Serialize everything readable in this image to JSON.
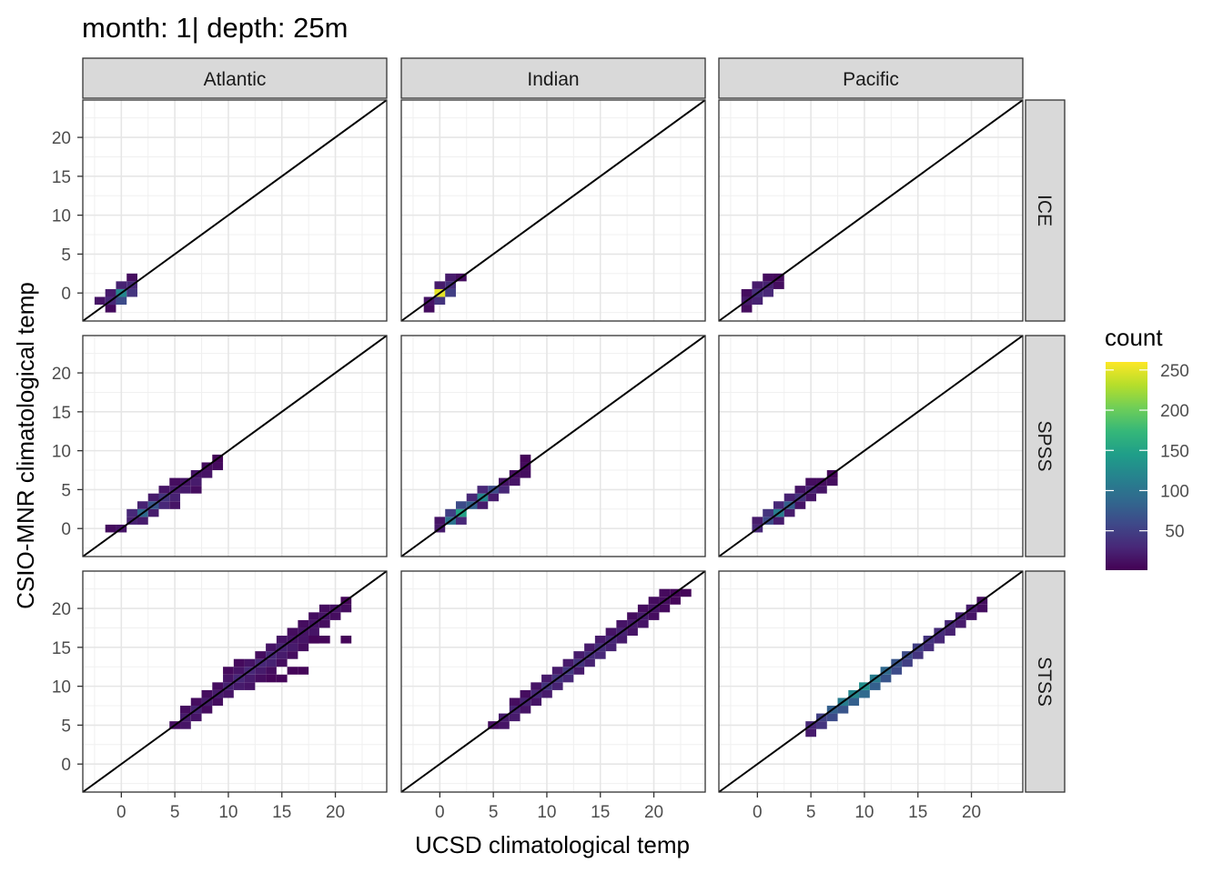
{
  "chart_data": {
    "type": "heatmap",
    "title": "month: 1| depth: 25m",
    "xlabel": "UCSD climatological temp",
    "ylabel": "CSIO-MNR climatological temp",
    "xlim": [
      -3.6,
      24.8
    ],
    "ylim": [
      -3.6,
      24.8
    ],
    "xticks": [
      0,
      5,
      10,
      15,
      20
    ],
    "yticks": [
      0,
      5,
      10,
      15,
      20
    ],
    "grid": true,
    "reference_line": "y = x",
    "bin_width": 1,
    "col_facets": [
      "Atlantic",
      "Indian",
      "Pacific"
    ],
    "row_facets": [
      "ICE",
      "SPSS",
      "STSS"
    ],
    "legend": {
      "title": "count",
      "position": "right",
      "ticks": [
        50,
        100,
        150,
        200,
        250
      ],
      "range": [
        1,
        260
      ],
      "palette": [
        "#440154",
        "#482878",
        "#3e4989",
        "#31688e",
        "#26828e",
        "#1f9e89",
        "#35b779",
        "#6ece58",
        "#b5de2b",
        "#fde725"
      ]
    },
    "panels": [
      {
        "col": "Atlantic",
        "row": "ICE",
        "cells": [
          [
            -2,
            -1,
            15
          ],
          [
            -1,
            -1,
            30
          ],
          [
            -1,
            0,
            20
          ],
          [
            0,
            -1,
            60
          ],
          [
            0,
            0,
            120
          ],
          [
            0,
            1,
            25
          ],
          [
            1,
            0,
            40
          ],
          [
            1,
            1,
            30
          ],
          [
            1,
            2,
            10
          ],
          [
            -1,
            -2,
            8
          ]
        ]
      },
      {
        "col": "Indian",
        "row": "ICE",
        "cells": [
          [
            -1,
            -1,
            15
          ],
          [
            -1,
            -2,
            10
          ],
          [
            0,
            -1,
            40
          ],
          [
            0,
            0,
            250
          ],
          [
            0,
            1,
            20
          ],
          [
            1,
            0,
            50
          ],
          [
            1,
            1,
            35
          ],
          [
            1,
            2,
            20
          ],
          [
            2,
            2,
            10
          ]
        ]
      },
      {
        "col": "Pacific",
        "row": "ICE",
        "cells": [
          [
            -1,
            -1,
            20
          ],
          [
            -1,
            -2,
            10
          ],
          [
            -1,
            0,
            10
          ],
          [
            0,
            -1,
            25
          ],
          [
            0,
            0,
            35
          ],
          [
            0,
            1,
            20
          ],
          [
            1,
            0,
            30
          ],
          [
            1,
            1,
            25
          ],
          [
            1,
            2,
            10
          ],
          [
            2,
            1,
            10
          ],
          [
            2,
            2,
            8
          ]
        ]
      },
      {
        "col": "Atlantic",
        "row": "SPSS",
        "cells": [
          [
            -1,
            0,
            10
          ],
          [
            0,
            0,
            15
          ],
          [
            1,
            1,
            25
          ],
          [
            1,
            2,
            30
          ],
          [
            2,
            1,
            20
          ],
          [
            2,
            2,
            90
          ],
          [
            2,
            3,
            25
          ],
          [
            3,
            2,
            20
          ],
          [
            3,
            3,
            70
          ],
          [
            3,
            4,
            20
          ],
          [
            4,
            3,
            30
          ],
          [
            4,
            4,
            40
          ],
          [
            4,
            5,
            15
          ],
          [
            5,
            3,
            15
          ],
          [
            5,
            4,
            25
          ],
          [
            5,
            5,
            20
          ],
          [
            5,
            6,
            10
          ],
          [
            6,
            5,
            20
          ],
          [
            6,
            6,
            15
          ],
          [
            7,
            6,
            20
          ],
          [
            7,
            7,
            15
          ],
          [
            7,
            5,
            10
          ],
          [
            8,
            7,
            15
          ],
          [
            8,
            8,
            10
          ],
          [
            9,
            8,
            8
          ],
          [
            9,
            9,
            5
          ]
        ]
      },
      {
        "col": "Indian",
        "row": "SPSS",
        "cells": [
          [
            0,
            0,
            20
          ],
          [
            0,
            1,
            15
          ],
          [
            1,
            1,
            100
          ],
          [
            1,
            2,
            50
          ],
          [
            2,
            1,
            30
          ],
          [
            2,
            2,
            150
          ],
          [
            2,
            3,
            60
          ],
          [
            3,
            3,
            80
          ],
          [
            3,
            4,
            30
          ],
          [
            4,
            3,
            20
          ],
          [
            4,
            4,
            120
          ],
          [
            4,
            5,
            30
          ],
          [
            5,
            5,
            60
          ],
          [
            5,
            4,
            20
          ],
          [
            6,
            5,
            30
          ],
          [
            6,
            6,
            15
          ],
          [
            7,
            6,
            15
          ],
          [
            7,
            7,
            10
          ],
          [
            8,
            7,
            10
          ],
          [
            8,
            8,
            8
          ],
          [
            8,
            9,
            5
          ]
        ]
      },
      {
        "col": "Pacific",
        "row": "SPSS",
        "cells": [
          [
            0,
            0,
            30
          ],
          [
            0,
            1,
            20
          ],
          [
            1,
            1,
            60
          ],
          [
            1,
            2,
            40
          ],
          [
            2,
            1,
            20
          ],
          [
            2,
            2,
            110
          ],
          [
            2,
            3,
            30
          ],
          [
            3,
            3,
            80
          ],
          [
            3,
            2,
            20
          ],
          [
            3,
            4,
            25
          ],
          [
            4,
            4,
            40
          ],
          [
            4,
            3,
            15
          ],
          [
            4,
            5,
            15
          ],
          [
            5,
            5,
            25
          ],
          [
            5,
            4,
            15
          ],
          [
            5,
            6,
            10
          ],
          [
            6,
            5,
            15
          ],
          [
            6,
            6,
            10
          ],
          [
            7,
            6,
            10
          ],
          [
            7,
            7,
            5
          ]
        ]
      },
      {
        "col": "Atlantic",
        "row": "STSS",
        "cells": [
          [
            5,
            5,
            10
          ],
          [
            6,
            5,
            15
          ],
          [
            6,
            6,
            20
          ],
          [
            6,
            7,
            10
          ],
          [
            7,
            6,
            15
          ],
          [
            7,
            7,
            25
          ],
          [
            7,
            8,
            10
          ],
          [
            8,
            7,
            10
          ],
          [
            8,
            8,
            20
          ],
          [
            8,
            9,
            10
          ],
          [
            9,
            8,
            10
          ],
          [
            9,
            9,
            20
          ],
          [
            9,
            10,
            10
          ],
          [
            10,
            9,
            15
          ],
          [
            10,
            10,
            25
          ],
          [
            10,
            11,
            15
          ],
          [
            11,
            10,
            20
          ],
          [
            11,
            11,
            30
          ],
          [
            11,
            12,
            15
          ],
          [
            12,
            10,
            15
          ],
          [
            12,
            11,
            20
          ],
          [
            12,
            12,
            30
          ],
          [
            12,
            13,
            15
          ],
          [
            13,
            12,
            20
          ],
          [
            13,
            13,
            30
          ],
          [
            13,
            14,
            10
          ],
          [
            13,
            11,
            10
          ],
          [
            14,
            13,
            25
          ],
          [
            14,
            14,
            30
          ],
          [
            14,
            15,
            15
          ],
          [
            14,
            12,
            10
          ],
          [
            15,
            14,
            20
          ],
          [
            15,
            15,
            25
          ],
          [
            15,
            16,
            15
          ],
          [
            15,
            13,
            10
          ],
          [
            16,
            15,
            20
          ],
          [
            16,
            16,
            15
          ],
          [
            16,
            17,
            10
          ],
          [
            16,
            14,
            10
          ],
          [
            17,
            16,
            15
          ],
          [
            17,
            17,
            15
          ],
          [
            17,
            18,
            10
          ],
          [
            17,
            15,
            10
          ],
          [
            18,
            17,
            15
          ],
          [
            18,
            18,
            15
          ],
          [
            18,
            19,
            10
          ],
          [
            18,
            16,
            5
          ],
          [
            19,
            18,
            10
          ],
          [
            19,
            19,
            15
          ],
          [
            19,
            20,
            10
          ],
          [
            20,
            19,
            10
          ],
          [
            20,
            20,
            15
          ],
          [
            21,
            20,
            10
          ],
          [
            21,
            21,
            5
          ],
          [
            10,
            12,
            8
          ],
          [
            11,
            13,
            8
          ],
          [
            14,
            11,
            5
          ],
          [
            15,
            11,
            5
          ],
          [
            16,
            12,
            5
          ],
          [
            17,
            12,
            5
          ],
          [
            18,
            16,
            5
          ],
          [
            19,
            16,
            5
          ],
          [
            21,
            16,
            5
          ]
        ]
      },
      {
        "col": "Indian",
        "row": "STSS",
        "cells": [
          [
            5,
            5,
            10
          ],
          [
            6,
            5,
            15
          ],
          [
            6,
            6,
            20
          ],
          [
            7,
            6,
            20
          ],
          [
            7,
            7,
            25
          ],
          [
            7,
            8,
            10
          ],
          [
            8,
            7,
            15
          ],
          [
            8,
            8,
            25
          ],
          [
            8,
            9,
            10
          ],
          [
            9,
            8,
            15
          ],
          [
            9,
            9,
            30
          ],
          [
            9,
            10,
            15
          ],
          [
            10,
            9,
            20
          ],
          [
            10,
            10,
            40
          ],
          [
            10,
            11,
            20
          ],
          [
            11,
            10,
            25
          ],
          [
            11,
            11,
            40
          ],
          [
            11,
            12,
            20
          ],
          [
            12,
            11,
            30
          ],
          [
            12,
            12,
            45
          ],
          [
            12,
            13,
            20
          ],
          [
            13,
            12,
            20
          ],
          [
            13,
            13,
            40
          ],
          [
            13,
            14,
            20
          ],
          [
            14,
            13,
            25
          ],
          [
            14,
            14,
            35
          ],
          [
            14,
            15,
            20
          ],
          [
            15,
            14,
            30
          ],
          [
            15,
            15,
            35
          ],
          [
            15,
            16,
            20
          ],
          [
            16,
            15,
            25
          ],
          [
            16,
            16,
            30
          ],
          [
            16,
            17,
            15
          ],
          [
            17,
            16,
            20
          ],
          [
            17,
            17,
            25
          ],
          [
            17,
            18,
            15
          ],
          [
            18,
            17,
            15
          ],
          [
            18,
            18,
            20
          ],
          [
            18,
            19,
            10
          ],
          [
            19,
            18,
            15
          ],
          [
            19,
            19,
            20
          ],
          [
            19,
            20,
            10
          ],
          [
            20,
            19,
            10
          ],
          [
            20,
            20,
            15
          ],
          [
            20,
            21,
            10
          ],
          [
            21,
            20,
            8
          ],
          [
            21,
            21,
            10
          ],
          [
            21,
            22,
            8
          ],
          [
            22,
            21,
            5
          ],
          [
            22,
            22,
            5
          ],
          [
            23,
            22,
            5
          ]
        ]
      },
      {
        "col": "Pacific",
        "row": "STSS",
        "cells": [
          [
            5,
            4,
            20
          ],
          [
            5,
            5,
            30
          ],
          [
            6,
            5,
            40
          ],
          [
            6,
            6,
            50
          ],
          [
            7,
            6,
            60
          ],
          [
            7,
            7,
            80
          ],
          [
            8,
            7,
            70
          ],
          [
            8,
            8,
            110
          ],
          [
            9,
            8,
            80
          ],
          [
            9,
            9,
            120
          ],
          [
            10,
            9,
            90
          ],
          [
            10,
            10,
            130
          ],
          [
            11,
            10,
            80
          ],
          [
            11,
            11,
            110
          ],
          [
            12,
            11,
            70
          ],
          [
            12,
            12,
            90
          ],
          [
            13,
            12,
            60
          ],
          [
            13,
            13,
            70
          ],
          [
            14,
            13,
            50
          ],
          [
            14,
            14,
            60
          ],
          [
            15,
            14,
            40
          ],
          [
            15,
            15,
            50
          ],
          [
            16,
            15,
            35
          ],
          [
            16,
            16,
            40
          ],
          [
            17,
            16,
            30
          ],
          [
            17,
            17,
            35
          ],
          [
            18,
            17,
            25
          ],
          [
            18,
            18,
            30
          ],
          [
            19,
            18,
            20
          ],
          [
            19,
            19,
            25
          ],
          [
            20,
            19,
            15
          ],
          [
            20,
            20,
            20
          ],
          [
            21,
            20,
            10
          ],
          [
            21,
            21,
            10
          ]
        ]
      }
    ]
  }
}
